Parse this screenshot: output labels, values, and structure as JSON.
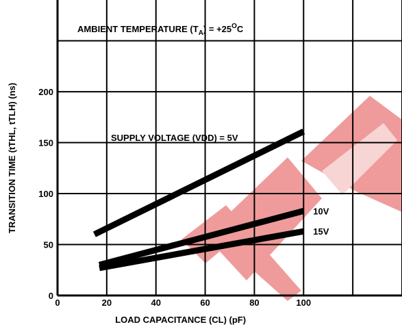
{
  "chart_data": {
    "type": "line",
    "title": "",
    "xlabel": "LOAD CAPACITANCE (CL) (pF)",
    "ylabel": "TRANSITION TIME (tTHL, tTLH) (ns)",
    "xlim": [
      0,
      140
    ],
    "ylim": [
      0,
      290
    ],
    "x_ticks": [
      0,
      20,
      40,
      60,
      80,
      100
    ],
    "y_ticks": [
      0,
      50,
      100,
      150,
      200
    ],
    "x_grid": [
      0,
      20,
      40,
      60,
      80,
      100,
      120,
      140
    ],
    "y_grid": [
      0,
      50,
      100,
      150,
      200,
      250
    ],
    "grid": true,
    "annotations": {
      "temperature": {
        "prefix": "AMBIENT TEMPERATURE (T",
        "subscript": "A",
        "middle": ") = +25",
        "superscript": "O",
        "suffix": "C"
      },
      "supply": "SUPPLY VOLTAGE (VDD) = 5V"
    },
    "series": [
      {
        "name": "5V",
        "x": [
          15,
          100
        ],
        "y": [
          60,
          161
        ],
        "color": "#000000"
      },
      {
        "name": "10V",
        "x": [
          17,
          100
        ],
        "y": [
          30,
          83
        ],
        "color": "#000000"
      },
      {
        "name": "15V",
        "x": [
          17,
          100
        ],
        "y": [
          27,
          63
        ],
        "color": "#000000"
      }
    ]
  },
  "watermark": {
    "text": "EEPW",
    "color": "#e34a4a"
  }
}
